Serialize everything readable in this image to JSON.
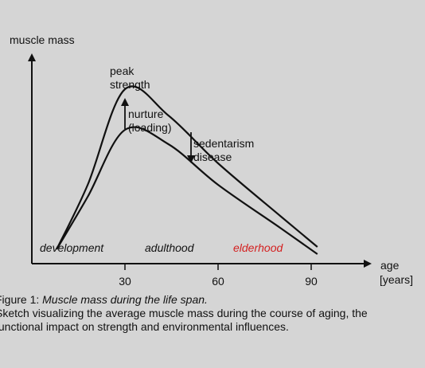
{
  "chart_data": {
    "type": "line",
    "ylabel": "muscle mass",
    "xlabel": "age",
    "xunit": "[years]",
    "x_ticks": [
      30,
      60,
      90
    ],
    "series": [
      {
        "points": [
          [
            8,
            0.06
          ],
          [
            18,
            0.33
          ],
          [
            30,
            0.73
          ],
          [
            44,
            0.62
          ],
          [
            60,
            0.42
          ],
          [
            80,
            0.2
          ],
          [
            92,
            0.07
          ]
        ]
      },
      {
        "points": [
          [
            8,
            0.06
          ],
          [
            18,
            0.28
          ],
          [
            30,
            0.56
          ],
          [
            44,
            0.5
          ],
          [
            60,
            0.33
          ],
          [
            80,
            0.15
          ],
          [
            92,
            0.04
          ]
        ]
      }
    ],
    "annotations": {
      "peak": "peak\nstrength",
      "nurture": "nurture\n(loading)",
      "sedentarism": "sedentarism\ndisease"
    },
    "phases": [
      {
        "label": "development",
        "color": "#111111"
      },
      {
        "label": "adulthood",
        "color": "#111111"
      },
      {
        "label": "elderhood",
        "color": "#d42020"
      }
    ]
  },
  "caption": {
    "figure_label": "Figure 1: ",
    "figure_title": "Muscle mass during the life span.",
    "line1": "Sketch visualizing the average muscle mass during the course of aging, the",
    "line2": "functional impact on strength and environmental influences."
  }
}
